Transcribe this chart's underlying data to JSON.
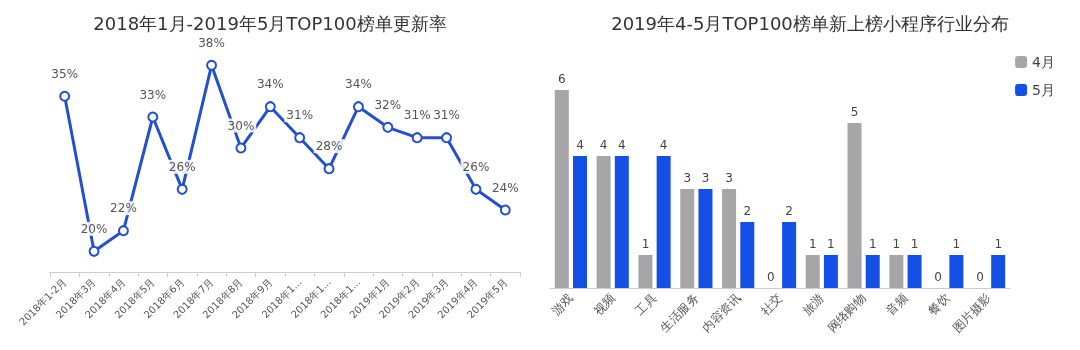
{
  "chart_data": [
    {
      "type": "line",
      "title": "2018年1月-2019年5月TOP100榜单更新率",
      "categories": [
        "2018年1-2月",
        "2018年3月",
        "2018年4月",
        "2018年5月",
        "2018年6月",
        "2018年7月",
        "2018年8月",
        "2018年9月",
        "2018年1...",
        "2018年1...",
        "2018年1...",
        "2019年1月",
        "2019年2月",
        "2019年3月",
        "2019年4月",
        "2019年5月"
      ],
      "series": [
        {
          "color": "#2450d0",
          "values": [
            35,
            20,
            22,
            33,
            26,
            38,
            30,
            34,
            31,
            28,
            34,
            32,
            31,
            31,
            26,
            24
          ],
          "value_labels": [
            "35%",
            "20%",
            "22%",
            "33%",
            "26%",
            "38%",
            "30%",
            "34%",
            "31%",
            "28%",
            "34%",
            "32%",
            "31%",
            "31%",
            "26%",
            "24%"
          ]
        }
      ],
      "marker": "circle",
      "grid": false,
      "legend": false,
      "tick_labels": "x"
    },
    {
      "type": "bar",
      "title": "2019年4-5月TOP100榜单新上榜小程序行业分布",
      "categories": [
        "游戏",
        "视频",
        "工具",
        "生活服务",
        "内容资讯",
        "社交",
        "旅游",
        "网络购物",
        "音频",
        "餐饮",
        "图片摄影"
      ],
      "series": [
        {
          "name": "4月",
          "color": "#a6a6a8",
          "values": [
            6,
            4,
            1,
            3,
            3,
            0,
            1,
            5,
            1,
            0,
            0
          ]
        },
        {
          "name": "5月",
          "color": "#1450e6",
          "values": [
            4,
            4,
            4,
            3,
            2,
            2,
            1,
            1,
            1,
            1,
            1
          ]
        }
      ],
      "data_labels": true,
      "grid": false,
      "legend": "top right",
      "tick_labels": "x"
    }
  ]
}
